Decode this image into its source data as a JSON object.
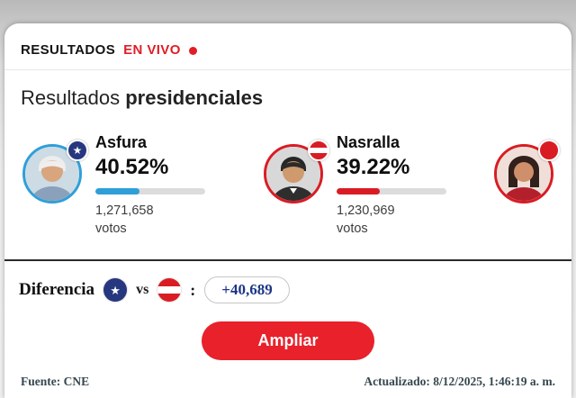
{
  "colors": {
    "live_red": "#e01e25",
    "asfura_blue": "#2f9fd8",
    "asfura_badge_blue": "#27377f",
    "nasralla_red": "#d91c24",
    "third_red": "#d91c24",
    "button_red": "#e8212b",
    "difference_navy": "#1c3687",
    "bar_track": "#dcdcdc"
  },
  "icons": {
    "star": "★"
  },
  "header": {
    "title": "RESULTADOS",
    "live_label": "EN VIVO"
  },
  "title": {
    "regular": "Resultados",
    "bold": "presidenciales"
  },
  "candidates": [
    {
      "name": "Asfura",
      "percent": "40.52%",
      "bar_pct": 40.52,
      "votes": "1,271,658",
      "votes_label": "votos",
      "ring_color": "#2f9fd8",
      "bar_color": "#2f9fd8",
      "badge_color": "#27377f",
      "party_badge": "blue-star"
    },
    {
      "name": "Nasralla",
      "percent": "39.22%",
      "bar_pct": 39.22,
      "votes": "1,230,969",
      "votes_label": "votos",
      "ring_color": "#d91c24",
      "bar_color": "#d91c24",
      "party_badge": "liberal-flag"
    },
    {
      "ring_color": "#d91c24",
      "badge_color": "#d91c24",
      "party_badge": "red"
    }
  ],
  "difference": {
    "label": "Diferencia",
    "vs_label": "vs",
    "separator": ":",
    "value": "+40,689"
  },
  "actions": {
    "expand_label": "Ampliar"
  },
  "footer": {
    "source": "Fuente: CNE",
    "updated": "Actualizado: 8/12/2025, 1:46:19 a. m."
  }
}
